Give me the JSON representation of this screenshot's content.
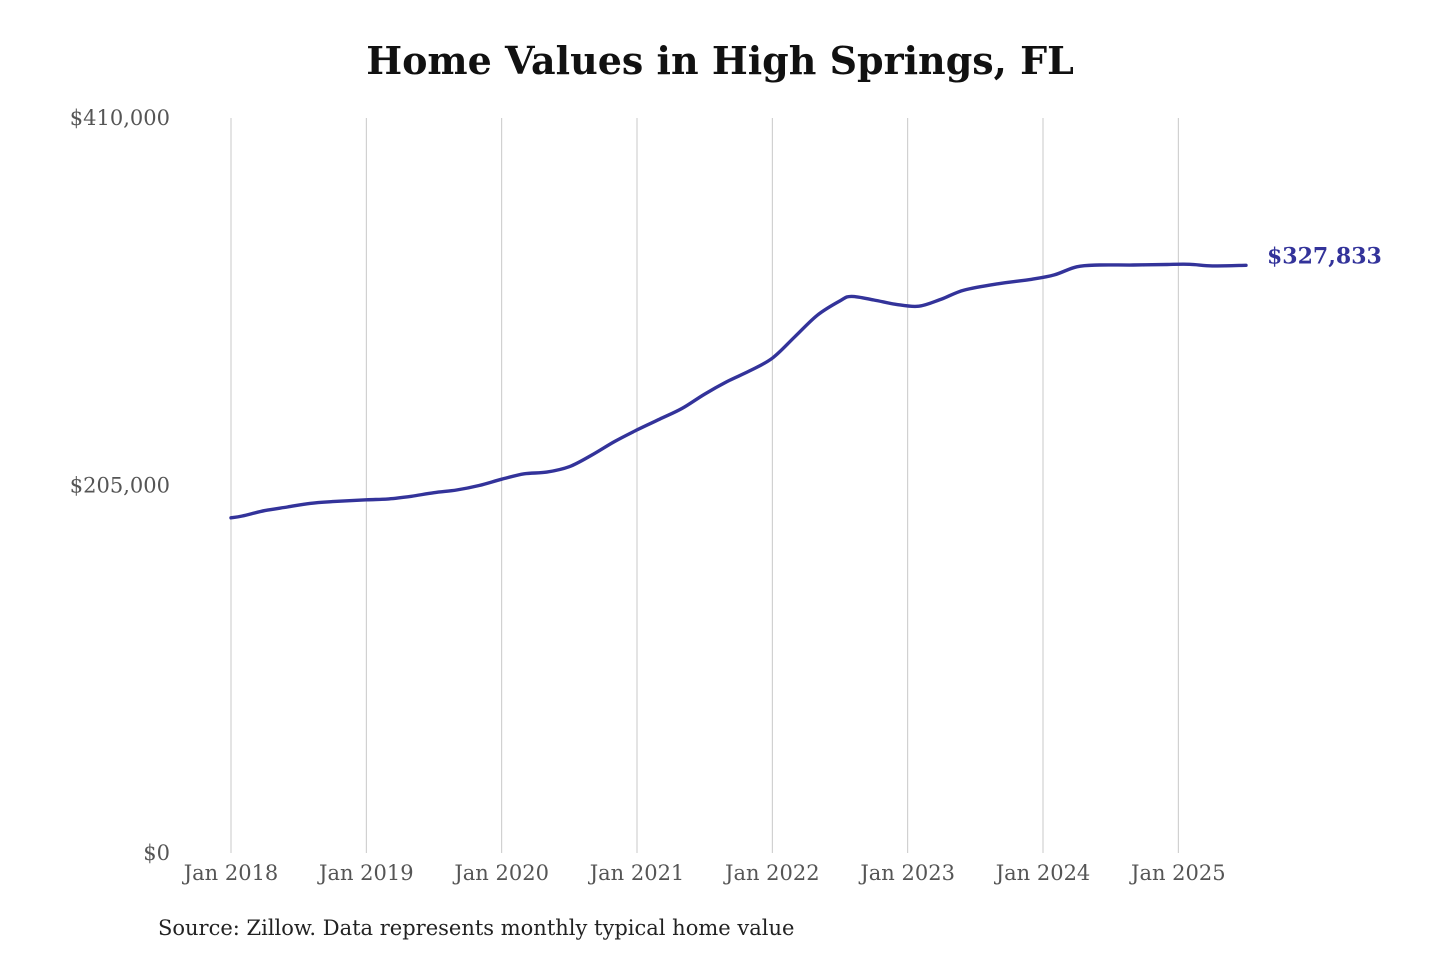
{
  "title": "Home Values in High Springs, FL",
  "source": "Source: Zillow. Data represents monthly typical home value",
  "colors": {
    "line": "#33339a",
    "grid": "#c8c8c8",
    "end_label": "#33339a"
  },
  "chart_data": {
    "type": "line",
    "title": "Home Values in High Springs, FL",
    "xlabel": "",
    "ylabel": "",
    "ylim": [
      0,
      410000
    ],
    "xlim": [
      "2018-01",
      "2025-07"
    ],
    "y_ticks": [
      {
        "value": 0,
        "label": "$0"
      },
      {
        "value": 205000,
        "label": "$205,000"
      },
      {
        "value": 410000,
        "label": "$410,000"
      }
    ],
    "x_ticks": [
      {
        "value": "2018-01",
        "label": "Jan 2018"
      },
      {
        "value": "2019-01",
        "label": "Jan 2019"
      },
      {
        "value": "2020-01",
        "label": "Jan 2020"
      },
      {
        "value": "2021-01",
        "label": "Jan 2021"
      },
      {
        "value": "2022-01",
        "label": "Jan 2022"
      },
      {
        "value": "2023-01",
        "label": "Jan 2023"
      },
      {
        "value": "2024-01",
        "label": "Jan 2024"
      },
      {
        "value": "2025-01",
        "label": "Jan 2025"
      }
    ],
    "grid": "vertical",
    "end_label": "$327,833",
    "series": [
      {
        "x": [
          "2018-01",
          "2018-02",
          "2018-04",
          "2018-06",
          "2018-08",
          "2018-10",
          "2019-01",
          "2019-03",
          "2019-05",
          "2019-07",
          "2019-09",
          "2019-11",
          "2020-01",
          "2020-03",
          "2020-05",
          "2020-07",
          "2020-09",
          "2020-11",
          "2021-01",
          "2021-03",
          "2021-05",
          "2021-07",
          "2021-09",
          "2021-11",
          "2022-01",
          "2022-03",
          "2022-05",
          "2022-07",
          "2022-08",
          "2022-10",
          "2022-12",
          "2023-02",
          "2023-04",
          "2023-06",
          "2023-09",
          "2023-12",
          "2024-02",
          "2024-04",
          "2024-06",
          "2024-09",
          "2024-12",
          "2025-02",
          "2025-04",
          "2025-07"
        ],
        "values": [
          187000,
          188000,
          191000,
          193000,
          195000,
          196000,
          197000,
          197500,
          199000,
          201000,
          202500,
          205000,
          208500,
          211500,
          212500,
          215500,
          222000,
          229500,
          236000,
          242000,
          248000,
          256000,
          263000,
          269000,
          276000,
          288000,
          300000,
          308000,
          310500,
          308500,
          306000,
          305000,
          309000,
          314000,
          317500,
          320000,
          322500,
          327000,
          328000,
          328000,
          328300,
          328400,
          327500,
          327833
        ]
      }
    ]
  }
}
